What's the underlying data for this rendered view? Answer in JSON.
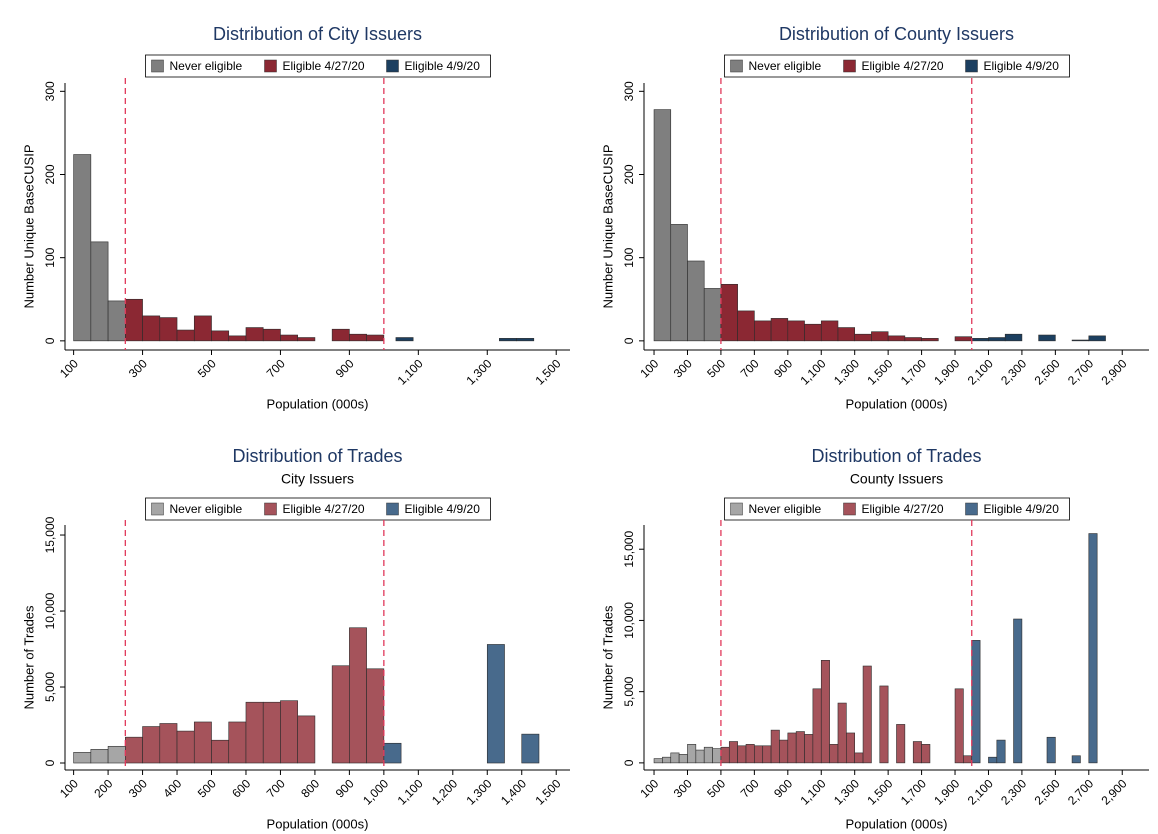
{
  "chart_data": [
    {
      "type": "histogram",
      "title": "Distribution of City Issuers",
      "x_label": "Population (000s)",
      "y_label": "Number Unique BaseCUSIP",
      "xlim": [
        75,
        1540
      ],
      "ylim": [
        -11,
        310
      ],
      "xticks": [
        100,
        300,
        500,
        700,
        900,
        {
          "value": 1100,
          "label": "1,100"
        },
        {
          "value": 1300,
          "label": "1,300"
        },
        {
          "value": 1500,
          "label": "1,500"
        }
      ],
      "yticks": [
        0,
        100,
        200,
        300
      ],
      "vlines": [
        250,
        1000
      ],
      "vline_color": "#e0385a",
      "series": [
        {
          "name": "Never eligible",
          "color": "#7f7f7f",
          "bins": [
            100,
            150,
            200,
            250
          ],
          "values": [
            224,
            119,
            48
          ]
        },
        {
          "name": "Eligible 4/27/20",
          "color": "#8b2833",
          "bins": [
            250,
            300,
            350,
            400,
            450,
            500,
            550,
            600,
            650,
            700,
            750,
            800,
            850,
            900,
            950,
            1000
          ],
          "values": [
            50,
            30,
            28,
            13,
            30,
            12,
            6,
            16,
            14,
            7,
            4,
            0,
            14,
            8,
            7
          ]
        },
        {
          "name": "Eligible 4/9/20",
          "color": "#1c3f60",
          "bins": [
            1035,
            1085,
            1135,
            1185,
            1235,
            1285,
            1335,
            1385,
            1435
          ],
          "values": [
            4,
            0,
            0,
            0,
            0,
            0,
            3,
            3
          ]
        }
      ]
    },
    {
      "type": "histogram",
      "title": "Distribution of County Issuers",
      "x_label": "Population (000s)",
      "y_label": "Number Unique BaseCUSIP",
      "xlim": [
        40,
        3060
      ],
      "ylim": [
        -11,
        310
      ],
      "xticks": [
        100,
        300,
        500,
        700,
        900,
        {
          "value": 1100,
          "label": "1,100"
        },
        {
          "value": 1300,
          "label": "1,300"
        },
        {
          "value": 1500,
          "label": "1,500"
        },
        {
          "value": 1700,
          "label": "1,700"
        },
        {
          "value": 1900,
          "label": "1,900"
        },
        {
          "value": 2100,
          "label": "2,100"
        },
        {
          "value": 2300,
          "label": "2,300"
        },
        {
          "value": 2500,
          "label": "2,500"
        },
        {
          "value": 2700,
          "label": "2,700"
        },
        {
          "value": 2900,
          "label": "2,900"
        }
      ],
      "yticks": [
        0,
        100,
        200,
        300
      ],
      "vlines": [
        500,
        2000
      ],
      "vline_color": "#e0385a",
      "series": [
        {
          "name": "Never eligible",
          "color": "#7f7f7f",
          "bins": [
            100,
            200,
            300,
            400,
            500
          ],
          "values": [
            278,
            140,
            96,
            63
          ]
        },
        {
          "name": "Eligible 4/27/20",
          "color": "#8b2833",
          "bins": [
            500,
            600,
            700,
            800,
            900,
            1000,
            1100,
            1200,
            1300,
            1400,
            1500,
            1600,
            1700,
            1800,
            1900,
            2000
          ],
          "values": [
            68,
            36,
            24,
            27,
            24,
            20,
            24,
            16,
            8,
            11,
            6,
            4,
            3,
            0,
            5
          ]
        },
        {
          "name": "Eligible 4/9/20",
          "color": "#1c3f60",
          "bins": [
            2000,
            2100,
            2200,
            2300,
            2400,
            2500,
            2600,
            2700,
            2800
          ],
          "values": [
            3,
            4,
            8,
            0,
            7,
            0,
            1,
            6
          ]
        }
      ]
    },
    {
      "type": "histogram",
      "title": "Distribution of Trades",
      "subtitle": "City Issuers",
      "x_label": "Population (000s)",
      "y_label": "Number of Trades",
      "xlim": [
        75,
        1540
      ],
      "ylim": [
        -460,
        15660
      ],
      "xticks": [
        100,
        200,
        300,
        400,
        500,
        600,
        700,
        800,
        900,
        {
          "value": 1000,
          "label": "1,000"
        },
        {
          "value": 1100,
          "label": "1,100"
        },
        {
          "value": 1200,
          "label": "1,200"
        },
        {
          "value": 1300,
          "label": "1,300"
        },
        {
          "value": 1400,
          "label": "1,400"
        },
        {
          "value": 1500,
          "label": "1,500"
        }
      ],
      "yticks": [
        0,
        {
          "value": 5000,
          "label": "5,000"
        },
        {
          "value": 10000,
          "label": "10,000"
        },
        {
          "value": 15000,
          "label": "15,000"
        }
      ],
      "vlines": [
        250,
        1000
      ],
      "vline_color": "#e0385a",
      "series": [
        {
          "name": "Never eligible",
          "color": "#a6a6a6",
          "bins": [
            100,
            150,
            200,
            250
          ],
          "values": [
            700,
            900,
            1100
          ]
        },
        {
          "name": "Eligible 4/27/20",
          "color": "#a5535b",
          "bins": [
            250,
            300,
            350,
            400,
            450,
            500,
            550,
            600,
            650,
            700,
            750,
            800,
            850,
            900,
            950,
            1000
          ],
          "values": [
            1700,
            2400,
            2600,
            2100,
            2700,
            1500,
            2700,
            4000,
            4000,
            4100,
            3100,
            0,
            6400,
            8900,
            6200
          ]
        },
        {
          "name": "Eligible 4/9/20",
          "color": "#486a8c",
          "bins": [
            1000,
            1050,
            1100,
            1150,
            1200,
            1250,
            1300,
            1350,
            1400,
            1450
          ],
          "values": [
            1300,
            0,
            0,
            0,
            0,
            0,
            7800,
            0,
            1900
          ]
        }
      ]
    },
    {
      "type": "histogram",
      "title": "Distribution of Trades",
      "subtitle": "County Issuers",
      "x_label": "Population (000s)",
      "y_label": "Number of Trades",
      "xlim": [
        40,
        3060
      ],
      "ylim": [
        -500,
        16700
      ],
      "xticks": [
        100,
        300,
        500,
        700,
        900,
        {
          "value": 1100,
          "label": "1,100"
        },
        {
          "value": 1300,
          "label": "1,300"
        },
        {
          "value": 1500,
          "label": "1,500"
        },
        {
          "value": 1700,
          "label": "1,700"
        },
        {
          "value": 1900,
          "label": "1,900"
        },
        {
          "value": 2100,
          "label": "2,100"
        },
        {
          "value": 2300,
          "label": "2,300"
        },
        {
          "value": 2500,
          "label": "2,500"
        },
        {
          "value": 2700,
          "label": "2,700"
        },
        {
          "value": 2900,
          "label": "2,900"
        }
      ],
      "yticks": [
        0,
        {
          "value": 5000,
          "label": "5,000"
        },
        {
          "value": 10000,
          "label": "10,000"
        },
        {
          "value": 15000,
          "label": "15,000"
        }
      ],
      "vlines": [
        500,
        2000
      ],
      "vline_color": "#e0385a",
      "series": [
        {
          "name": "Never eligible",
          "color": "#a6a6a6",
          "bins": [
            100,
            150,
            200,
            250,
            300,
            350,
            400,
            450,
            500
          ],
          "values": [
            300,
            400,
            700,
            600,
            1300,
            900,
            1100,
            1000
          ]
        },
        {
          "name": "Eligible 4/27/20",
          "color": "#a5535b",
          "bins": [
            500,
            550,
            600,
            650,
            700,
            750,
            800,
            850,
            900,
            950,
            1000,
            1050,
            1100,
            1150,
            1200,
            1250,
            1300,
            1350,
            1400,
            1450,
            1500,
            1550,
            1600,
            1650,
            1700,
            1750,
            1800,
            1850,
            1900,
            1950,
            2000
          ],
          "values": [
            1100,
            1500,
            1200,
            1300,
            1200,
            1200,
            2300,
            1600,
            2100,
            2200,
            2000,
            5200,
            7200,
            1300,
            4200,
            2100,
            700,
            6800,
            0,
            5400,
            0,
            2700,
            0,
            1500,
            1300,
            0,
            0,
            0,
            5200,
            500
          ]
        },
        {
          "name": "Eligible 4/9/20",
          "color": "#486a8c",
          "bins": [
            2000,
            2050,
            2100,
            2150,
            2200,
            2250,
            2300,
            2350,
            2400,
            2450,
            2500,
            2550,
            2600,
            2650,
            2700,
            2750
          ],
          "values": [
            8600,
            0,
            400,
            1600,
            0,
            10100,
            0,
            0,
            0,
            1800,
            0,
            0,
            500,
            0,
            16100
          ]
        }
      ]
    }
  ]
}
